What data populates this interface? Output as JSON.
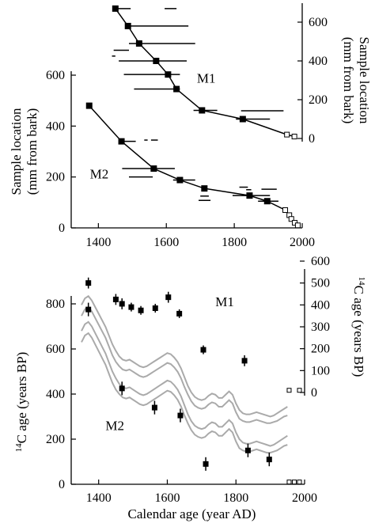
{
  "chart_data": [
    {
      "type": "scatter",
      "panel": "top",
      "xlabel": "",
      "ylabel_left": "Sample location (mm from bark)",
      "ylabel_right": "Sample location (mm from bark)",
      "xlim": [
        1320,
        2000
      ],
      "ylim_left": [
        0,
        600
      ],
      "ylim_right": [
        0,
        600
      ],
      "x_ticks": [
        1400,
        1600,
        1800,
        2000
      ],
      "y_ticks_left": [
        0,
        200,
        400,
        600
      ],
      "y_ticks_right": [
        0,
        200,
        400,
        600
      ],
      "grid": false,
      "annotations": [
        {
          "text": "M1",
          "x": 1690,
          "y": 570,
          "axis": "left"
        },
        {
          "text": "M2",
          "x": 1375,
          "y": 195,
          "axis": "left"
        }
      ],
      "series": [
        {
          "label": "M1",
          "axis": "right",
          "line": [
            [
              1450,
              670
            ],
            [
              1487,
              580
            ],
            [
              1520,
              490
            ],
            [
              1570,
              400
            ],
            [
              1605,
              330
            ],
            [
              1630,
              255
            ],
            [
              1705,
              145
            ],
            [
              1825,
              100
            ],
            [
              1955,
              20
            ],
            [
              1977,
              10
            ]
          ],
          "points": [
            {
              "x": 1450,
              "y": 670,
              "xerr": [
                1450,
                1495
              ],
              "open": false
            },
            {
              "x": 1487,
              "y": 580,
              "xerr": [
                1480,
                1665
              ],
              "open": false
            },
            {
              "x": 1520,
              "y": 490,
              "xerr": [
                1490,
                1685
              ],
              "open": false
            },
            {
              "x": 1570,
              "y": 400,
              "xerr": [
                1460,
                1660
              ],
              "open": false
            },
            {
              "x": 1605,
              "y": 330,
              "xerr": [
                1475,
                1640
              ],
              "open": false
            },
            {
              "x": 1630,
              "y": 255,
              "xerr": [
                1505,
                1640
              ],
              "open": false
            },
            {
              "x": 1705,
              "y": 145,
              "xerr": [
                1680,
                1750
              ],
              "open": false
            },
            {
              "x": 1825,
              "y": 100,
              "xerr": [
                1805,
                1905
              ],
              "open": false
            },
            {
              "x": 1955,
              "y": 20,
              "open": true
            },
            {
              "x": 1977,
              "y": 10,
              "open": true
            }
          ],
          "extra_ranges": [
            [
              1595,
              1630
            ],
            [
              1445,
              1490
            ],
            [
              1440,
              1450
            ],
            [
              1820,
              1945
            ]
          ]
        },
        {
          "label": "M2",
          "axis": "left",
          "line": [
            [
              1373,
              480
            ],
            [
              1468,
              340
            ],
            [
              1563,
              233
            ],
            [
              1640,
              188
            ],
            [
              1712,
              155
            ],
            [
              1845,
              127
            ],
            [
              1897,
              105
            ],
            [
              1950,
              70
            ],
            [
              1962,
              50
            ],
            [
              1968,
              35
            ],
            [
              1978,
              20
            ],
            [
              1987,
              10
            ]
          ],
          "points": [
            {
              "x": 1373,
              "y": 480,
              "open": false
            },
            {
              "x": 1468,
              "y": 340,
              "xerr": [
                1460,
                1510
              ],
              "open": false
            },
            {
              "x": 1563,
              "y": 233,
              "xerr": [
                1470,
                1625
              ],
              "open": false
            },
            {
              "x": 1640,
              "y": 188,
              "xerr": [
                1620,
                1685
              ],
              "open": false
            },
            {
              "x": 1712,
              "y": 155,
              "open": false
            },
            {
              "x": 1845,
              "y": 127,
              "xerr": [
                1795,
                1905
              ],
              "open": false
            },
            {
              "x": 1897,
              "y": 105,
              "xerr": [
                1870,
                1930
              ],
              "open": false
            },
            {
              "x": 1950,
              "y": 70,
              "open": true
            },
            {
              "x": 1962,
              "y": 50,
              "open": true
            },
            {
              "x": 1968,
              "y": 35,
              "open": true
            },
            {
              "x": 1978,
              "y": 20,
              "open": true
            },
            {
              "x": 1987,
              "y": 10,
              "open": true
            }
          ],
          "extra_ranges": [
            [
              1535,
              1545
            ],
            [
              1555,
              1575
            ],
            [
              1490,
              1560
            ],
            [
              1700,
              1725
            ],
            [
              1695,
              1730
            ],
            [
              1815,
              1840
            ],
            [
              1880,
              1925
            ],
            [
              1835,
              1850
            ]
          ]
        }
      ]
    },
    {
      "type": "line",
      "panel": "bottom",
      "xlabel": "Calendar age (year AD)",
      "ylabel_left": "14C age (years BP)",
      "ylabel_right": "14C age (years BP)",
      "xlim": [
        1320,
        2000
      ],
      "ylim_left": [
        0,
        800
      ],
      "ylim_right": [
        0,
        600
      ],
      "x_ticks": [
        1400,
        1600,
        1800,
        2000
      ],
      "y_ticks_left": [
        0,
        200,
        400,
        600,
        800
      ],
      "y_ticks_right": [
        0,
        100,
        200,
        300,
        400,
        500,
        600
      ],
      "grid": false,
      "annotations": [
        {
          "text": "M1",
          "x": 1740,
          "y": 790,
          "axis": "left"
        },
        {
          "text": "M2",
          "x": 1420,
          "y": 240,
          "axis": "left"
        }
      ],
      "calibration_curve": {
        "x": [
          1350,
          1360,
          1370,
          1380,
          1390,
          1400,
          1410,
          1420,
          1430,
          1440,
          1450,
          1460,
          1470,
          1480,
          1490,
          1500,
          1510,
          1520,
          1530,
          1540,
          1550,
          1560,
          1570,
          1580,
          1590,
          1600,
          1610,
          1620,
          1630,
          1640,
          1650,
          1660,
          1670,
          1680,
          1690,
          1700,
          1710,
          1720,
          1730,
          1740,
          1750,
          1760,
          1770,
          1780,
          1790,
          1800,
          1810,
          1820,
          1830,
          1840,
          1850,
          1860,
          1870,
          1880,
          1890,
          1900,
          1910,
          1920,
          1930,
          1940,
          1950
        ],
        "upper": [
          680,
          710,
          720,
          700,
          670,
          640,
          610,
          580,
          540,
          500,
          470,
          445,
          430,
          425,
          430,
          420,
          410,
          400,
          395,
          400,
          410,
          420,
          430,
          440,
          450,
          460,
          455,
          440,
          420,
          390,
          350,
          310,
          280,
          260,
          250,
          245,
          250,
          265,
          275,
          270,
          255,
          255,
          270,
          285,
          270,
          230,
          200,
          185,
          180,
          180,
          185,
          190,
          185,
          180,
          175,
          170,
          175,
          185,
          195,
          205,
          215
        ],
        "lower": [
          630,
          660,
          670,
          650,
          620,
          590,
          560,
          530,
          490,
          450,
          420,
          400,
          385,
          380,
          385,
          375,
          365,
          355,
          350,
          355,
          365,
          375,
          385,
          395,
          405,
          415,
          410,
          395,
          375,
          345,
          305,
          270,
          240,
          220,
          210,
          205,
          210,
          225,
          235,
          230,
          215,
          215,
          230,
          245,
          230,
          190,
          160,
          150,
          145,
          145,
          150,
          155,
          150,
          145,
          140,
          140,
          145,
          150,
          160,
          170,
          175
        ]
      },
      "series": [
        {
          "label": "M1",
          "axis": "right",
          "points": [
            {
              "x": 1370,
              "y": 500,
              "err": 25
            },
            {
              "x": 1450,
              "y": 425,
              "err": 25
            },
            {
              "x": 1468,
              "y": 405,
              "err": 25
            },
            {
              "x": 1495,
              "y": 390,
              "err": 20
            },
            {
              "x": 1523,
              "y": 375,
              "err": 20
            },
            {
              "x": 1565,
              "y": 385,
              "err": 20
            },
            {
              "x": 1603,
              "y": 435,
              "err": 25
            },
            {
              "x": 1635,
              "y": 360,
              "err": 20
            },
            {
              "x": 1705,
              "y": 195,
              "err": 20
            },
            {
              "x": 1825,
              "y": 145,
              "err": 25
            },
            {
              "x": 1955,
              "y": 10,
              "open": true
            },
            {
              "x": 1985,
              "y": 10,
              "open": true
            }
          ]
        },
        {
          "label": "M2",
          "axis": "left",
          "points": [
            {
              "x": 1370,
              "y": 775,
              "err": 30
            },
            {
              "x": 1468,
              "y": 425,
              "err": 30
            },
            {
              "x": 1563,
              "y": 340,
              "err": 30
            },
            {
              "x": 1638,
              "y": 305,
              "err": 30
            },
            {
              "x": 1712,
              "y": 90,
              "err": 30
            },
            {
              "x": 1835,
              "y": 150,
              "err": 30
            },
            {
              "x": 1897,
              "y": 110,
              "err": 30
            },
            {
              "x": 1955,
              "y": 10,
              "open": true
            },
            {
              "x": 1970,
              "y": 10,
              "open": true
            },
            {
              "x": 1985,
              "y": 10,
              "open": true
            }
          ]
        }
      ]
    }
  ]
}
